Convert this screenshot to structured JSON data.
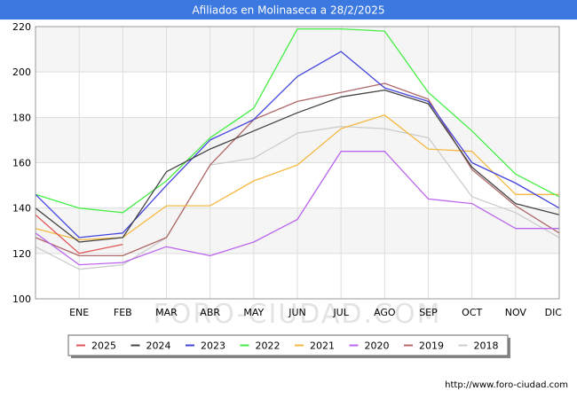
{
  "chart_data": {
    "type": "line",
    "title": "Afiliados en Molinaseca a 28/2/2025",
    "xlabel": "",
    "ylabel": "",
    "categories": [
      "",
      "ENE",
      "FEB",
      "MAR",
      "ABR",
      "MAY",
      "JUN",
      "JUL",
      "AGO",
      "SEP",
      "OCT",
      "NOV",
      "DIC"
    ],
    "yticks": [
      100,
      120,
      140,
      160,
      180,
      200,
      220
    ],
    "ylim": [
      100,
      220
    ],
    "grid": true,
    "legend_position": "bottom",
    "series": [
      {
        "name": "2025",
        "color": "#e05555",
        "values": [
          137,
          120,
          124,
          null,
          null,
          null,
          null,
          null,
          null,
          null,
          null,
          null,
          null
        ]
      },
      {
        "name": "2024",
        "color": "#444444",
        "values": [
          140,
          125,
          127,
          156,
          166,
          174,
          182,
          189,
          192,
          186,
          158,
          142,
          137
        ]
      },
      {
        "name": "2023",
        "color": "#4444dd",
        "values": [
          146,
          127,
          129,
          150,
          170,
          179,
          198,
          209,
          193,
          187,
          160,
          151,
          140
        ]
      },
      {
        "name": "2022",
        "color": "#44ee44",
        "values": [
          146,
          140,
          138,
          152,
          171,
          184,
          219,
          219,
          218,
          191,
          174,
          155,
          145
        ]
      },
      {
        "name": "2021",
        "color": "#f5b942",
        "values": [
          131,
          126,
          127,
          141,
          141,
          152,
          159,
          175,
          181,
          166,
          165,
          146,
          146
        ]
      },
      {
        "name": "2020",
        "color": "#bb66ee",
        "values": [
          129,
          115,
          116,
          123,
          119,
          125,
          135,
          165,
          165,
          144,
          142,
          131,
          131
        ]
      },
      {
        "name": "2019",
        "color": "#b06868",
        "values": [
          127,
          119,
          119,
          127,
          159,
          179,
          187,
          191,
          195,
          188,
          157,
          141,
          129
        ]
      },
      {
        "name": "2018",
        "color": "#cccccc",
        "values": [
          123,
          113,
          115,
          127,
          159,
          162,
          173,
          176,
          175,
          171,
          145,
          138,
          127
        ]
      }
    ]
  },
  "watermark": "FORO-CIUDAD.COM",
  "footer": {
    "url": "http://www.foro-ciudad.com"
  },
  "colors": {
    "title_bar": "#3b78e0",
    "plot_band": "#f5f5f5",
    "grid": "#dddddd"
  }
}
